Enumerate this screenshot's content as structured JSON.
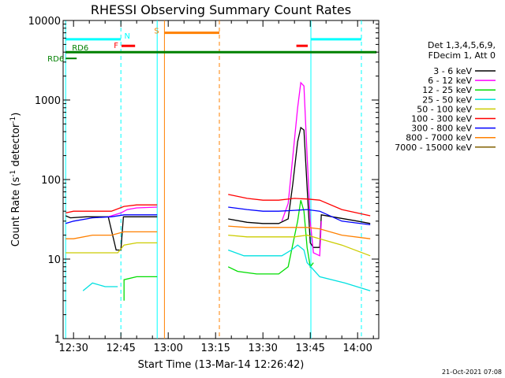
{
  "chart_data": {
    "type": "line",
    "title": "RHESSI Observing Summary Count Rates",
    "xlabel": "Start Time (13-Mar-14 12:26:42)",
    "ylabel_main": "Count Rate (s",
    "ylabel_sup1": "-1",
    "ylabel_mid": " detector",
    "ylabel_sup2": "-1",
    "ylabel_end": ")",
    "y_scale": "log",
    "ylim": [
      1,
      10000
    ],
    "xlim_min": [
      26.7,
      126.7
    ],
    "x_unit": "minutes after 12:00 on 13-Mar-14",
    "x_ticks": [
      {
        "t": 30,
        "label": "12:30"
      },
      {
        "t": 45,
        "label": "12:45"
      },
      {
        "t": 60,
        "label": "13:00"
      },
      {
        "t": 75,
        "label": "13:15"
      },
      {
        "t": 90,
        "label": "13:30"
      },
      {
        "t": 105,
        "label": "13:45"
      },
      {
        "t": 120,
        "label": "14:00"
      }
    ],
    "y_ticks": [
      {
        "v": 1,
        "label": "1"
      },
      {
        "v": 10,
        "label": "10"
      },
      {
        "v": 100,
        "label": "100"
      },
      {
        "v": 1000,
        "label": "1000"
      },
      {
        "v": 10000,
        "label": "10000"
      }
    ],
    "legend_header": [
      "Det 1,3,4,5,6,9,",
      "FDecim 1, Att 0"
    ],
    "legend_placement": "right",
    "footer_date": "21-Oct-2021 07:08",
    "series": [
      {
        "name": "3 - 6 keV",
        "color": "#000000",
        "segments": [
          [
            [
              27.5,
              35
            ],
            [
              29,
              33
            ],
            [
              34,
              34
            ],
            [
              41,
              34
            ],
            [
              43.5,
              13
            ],
            [
              45,
              13
            ],
            [
              45.8,
              34
            ],
            [
              50,
              34
            ],
            [
              56.5,
              34
            ]
          ],
          [
            [
              79,
              32
            ],
            [
              85,
              29
            ],
            [
              90,
              28
            ],
            [
              95,
              28
            ],
            [
              98,
              32
            ],
            [
              99.5,
              90
            ],
            [
              101,
              300
            ],
            [
              102,
              450
            ],
            [
              103,
              420
            ],
            [
              104,
              80
            ],
            [
              105,
              16
            ],
            [
              106,
              14
            ],
            [
              108,
              14
            ],
            [
              108.5,
              36
            ],
            [
              112,
              34
            ],
            [
              120,
              30
            ],
            [
              124,
              28
            ]
          ]
        ]
      },
      {
        "name": "6 - 12 keV",
        "color": "#ff00ff",
        "segments": [
          [
            [
              41,
              34
            ],
            [
              45,
              38
            ],
            [
              47,
              42
            ],
            [
              50,
              44
            ],
            [
              56.5,
              45
            ]
          ],
          [
            [
              96,
              30
            ],
            [
              98,
              50
            ],
            [
              99.5,
              200
            ],
            [
              101,
              800
            ],
            [
              102,
              1650
            ],
            [
              103,
              1500
            ],
            [
              104,
              200
            ],
            [
              105,
              30
            ],
            [
              106,
              12
            ],
            [
              108,
              11
            ],
            [
              108.5,
              30
            ]
          ]
        ]
      },
      {
        "name": "12 - 25 keV",
        "color": "#00dd00",
        "segments": [
          [
            [
              46,
              3
            ],
            [
              46,
              5.5
            ],
            [
              50,
              6
            ],
            [
              54,
              6
            ],
            [
              56.5,
              6
            ]
          ],
          [
            [
              79,
              8
            ],
            [
              82,
              7
            ],
            [
              88,
              6.5
            ],
            [
              95,
              6.5
            ],
            [
              98,
              8
            ],
            [
              101,
              30
            ],
            [
              102,
              55
            ],
            [
              103,
              40
            ],
            [
              104,
              14
            ],
            [
              105,
              8
            ],
            [
              106,
              9
            ]
          ]
        ]
      },
      {
        "name": "25 - 50 keV",
        "color": "#00e0e0",
        "segments": [
          [
            [
              33,
              4
            ],
            [
              36,
              5
            ],
            [
              40,
              4.5
            ],
            [
              44,
              4.5
            ]
          ],
          [
            [
              79,
              13
            ],
            [
              84,
              11
            ],
            [
              90,
              11
            ],
            [
              96,
              11
            ],
            [
              99,
              13
            ],
            [
              101,
              15
            ],
            [
              103,
              13
            ],
            [
              104,
              9
            ],
            [
              108,
              6
            ],
            [
              116,
              5
            ],
            [
              124,
              4
            ]
          ]
        ]
      },
      {
        "name": "50 - 100 keV",
        "color": "#cccc00",
        "segments": [
          [
            [
              27.5,
              12
            ],
            [
              29,
              12
            ],
            [
              33,
              12
            ],
            [
              40,
              12
            ],
            [
              44,
              12
            ],
            [
              46,
              15
            ],
            [
              50,
              16
            ],
            [
              56.5,
              16
            ]
          ],
          [
            [
              79,
              20
            ],
            [
              85,
              19
            ],
            [
              95,
              19
            ],
            [
              100,
              19
            ],
            [
              104,
              20
            ],
            [
              108,
              18
            ],
            [
              115,
              15
            ],
            [
              124,
              11
            ]
          ]
        ]
      },
      {
        "name": "100 - 300 keV",
        "color": "#ff0000",
        "segments": [
          [
            [
              27.5,
              38
            ],
            [
              30,
              40
            ],
            [
              36,
              40
            ],
            [
              42,
              40
            ],
            [
              46,
              46
            ],
            [
              50,
              48
            ],
            [
              56.5,
              48
            ]
          ],
          [
            [
              79,
              65
            ],
            [
              85,
              58
            ],
            [
              90,
              55
            ],
            [
              95,
              55
            ],
            [
              100,
              58
            ],
            [
              104,
              57
            ],
            [
              108,
              55
            ],
            [
              115,
              42
            ],
            [
              124,
              35
            ]
          ]
        ]
      },
      {
        "name": "300 - 800 keV",
        "color": "#0000ff",
        "segments": [
          [
            [
              27.5,
              28
            ],
            [
              30,
              30
            ],
            [
              36,
              33
            ],
            [
              42,
              34
            ],
            [
              46,
              36
            ],
            [
              50,
              36
            ],
            [
              56.5,
              36
            ]
          ],
          [
            [
              79,
              45
            ],
            [
              85,
              42
            ],
            [
              90,
              40
            ],
            [
              95,
              40
            ],
            [
              100,
              41
            ],
            [
              104,
              42
            ],
            [
              108,
              40
            ],
            [
              115,
              30
            ],
            [
              124,
              27
            ]
          ]
        ]
      },
      {
        "name": "800 - 7000 keV",
        "color": "#ff8000",
        "segments": [
          [
            [
              27.5,
              18
            ],
            [
              30,
              18
            ],
            [
              36,
              20
            ],
            [
              42,
              20
            ],
            [
              46,
              22
            ],
            [
              50,
              22
            ],
            [
              56.5,
              22
            ]
          ],
          [
            [
              79,
              26
            ],
            [
              85,
              25
            ],
            [
              95,
              25
            ],
            [
              100,
              25
            ],
            [
              104,
              25
            ],
            [
              108,
              24
            ],
            [
              115,
              20
            ],
            [
              124,
              18
            ]
          ]
        ]
      },
      {
        "name": "7000 - 15000 keV",
        "color": "#806000",
        "segments": []
      }
    ],
    "attenuator_bars": [
      {
        "label": "N",
        "color": "#00ffff",
        "t0": 27.4,
        "t1": 45.0,
        "v": 5800
      },
      {
        "label": "",
        "color": "#00ffff",
        "t0": 105.2,
        "t1": 121.2,
        "v": 5800
      },
      {
        "label": "S",
        "color": "#ff8000",
        "t0": 58.8,
        "t1": 76.2,
        "v": 7000
      },
      {
        "label": "F",
        "color": "#ff0000",
        "t0": 45.2,
        "t1": 49.5,
        "v": 4800
      },
      {
        "label": "",
        "color": "#ff0000",
        "t0": 100.6,
        "t1": 104.2,
        "v": 4800
      },
      {
        "label": "RD6",
        "color": "#008000",
        "t0": 27.5,
        "t1": 126.0,
        "v": 4000
      }
    ],
    "rd6_marker": {
      "label": "RD6",
      "color": "#008000"
    },
    "vertical_lines": [
      {
        "t": 27.5,
        "color": "#00ffff",
        "style": "solid"
      },
      {
        "t": 45.0,
        "color": "#00ffff",
        "style": "dashed"
      },
      {
        "t": 56.5,
        "color": "#00ffff",
        "style": "solid"
      },
      {
        "t": 58.8,
        "color": "#ff8000",
        "style": "solid"
      },
      {
        "t": 76.2,
        "color": "#ff8000",
        "style": "dashed"
      },
      {
        "t": 105.2,
        "color": "#00ffff",
        "style": "solid"
      },
      {
        "t": 121.2,
        "color": "#00ffff",
        "style": "dashed"
      }
    ]
  }
}
